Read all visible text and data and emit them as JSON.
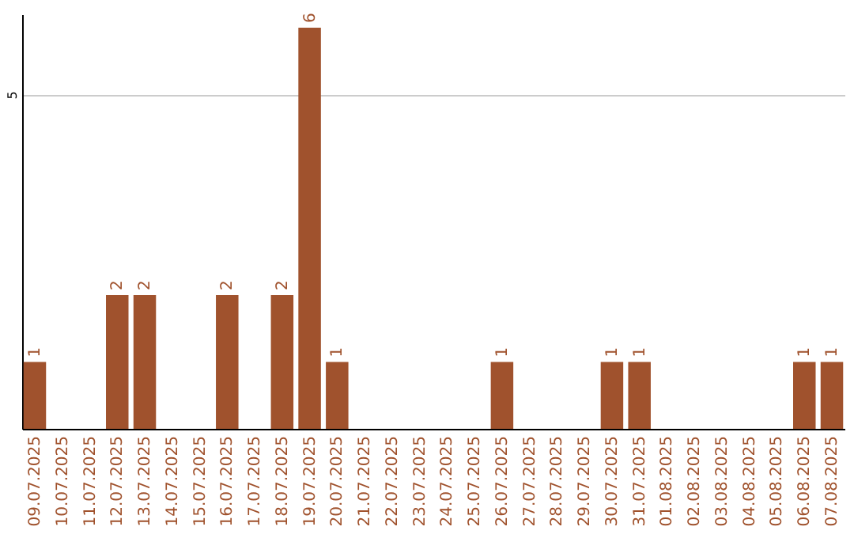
{
  "chart_data": {
    "type": "bar",
    "categories": [
      "09.07.2025",
      "10.07.2025",
      "11.07.2025",
      "12.07.2025",
      "13.07.2025",
      "14.07.2025",
      "15.07.2025",
      "16.07.2025",
      "17.07.2025",
      "18.07.2025",
      "19.07.2025",
      "20.07.2025",
      "21.07.2025",
      "22.07.2025",
      "23.07.2025",
      "24.07.2025",
      "25.07.2025",
      "26.07.2025",
      "27.07.2025",
      "28.07.2025",
      "29.07.2025",
      "30.07.2025",
      "31.07.2025",
      "01.08.2025",
      "02.08.2025",
      "03.08.2025",
      "04.08.2025",
      "05.08.2025",
      "06.08.2025",
      "07.08.2025"
    ],
    "values": [
      1,
      0,
      0,
      2,
      2,
      0,
      0,
      2,
      0,
      2,
      6,
      1,
      0,
      0,
      0,
      0,
      0,
      1,
      0,
      0,
      0,
      1,
      1,
      0,
      0,
      0,
      0,
      0,
      1,
      1
    ],
    "value_labels": [
      "1",
      null,
      null,
      "2",
      "2",
      null,
      null,
      "2",
      null,
      "2",
      "6",
      "1",
      null,
      null,
      null,
      null,
      null,
      "1",
      null,
      null,
      null,
      "1",
      "1",
      null,
      null,
      null,
      null,
      null,
      "1",
      "1"
    ],
    "color": "#a0522d",
    "ylim": [
      0,
      6.2
    ],
    "yticks": [
      5
    ],
    "grid": "y"
  }
}
